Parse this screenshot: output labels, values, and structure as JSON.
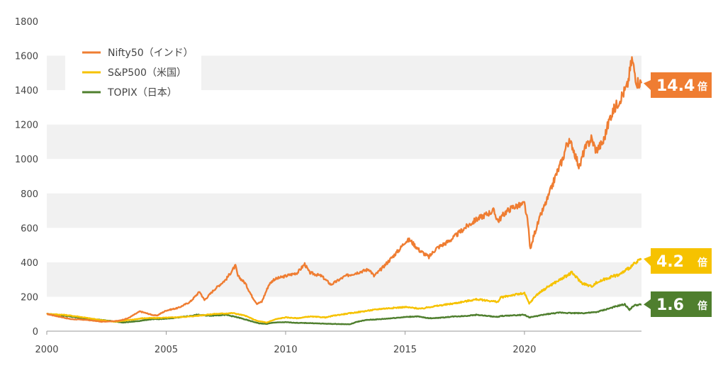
{
  "chart_data": {
    "type": "line",
    "title": "",
    "xlabel": "",
    "ylabel": "",
    "xlim": [
      2000,
      2024.9
    ],
    "ylim": [
      0,
      1800
    ],
    "x_ticks": [
      2000,
      2005,
      2010,
      2015,
      2020
    ],
    "x_tick_labels": [
      "2000",
      "2005",
      "2010",
      "2015",
      "2020"
    ],
    "y_ticks": [
      0,
      200,
      400,
      600,
      800,
      1000,
      1200,
      1400,
      1600,
      1800
    ],
    "y_tick_labels": [
      "0",
      "200",
      "400",
      "600",
      "800",
      "1000",
      "1200",
      "1400",
      "1600",
      "1800"
    ],
    "grid": "horizontal-bands",
    "legend_position": "top-left",
    "series": [
      {
        "name": "Nifty50（インド）",
        "color": "#ef7d32",
        "x": [
          2000,
          2000.5,
          2001,
          2001.7,
          2002.3,
          2003,
          2003.4,
          2003.9,
          2004.4,
          2004.6,
          2005,
          2005.5,
          2006,
          2006.4,
          2006.6,
          2007,
          2007.5,
          2007.9,
          2008,
          2008.3,
          2008.6,
          2008.8,
          2009,
          2009.3,
          2009.5,
          2010,
          2010.5,
          2010.8,
          2011,
          2011.5,
          2011.9,
          2012.5,
          2013,
          2013.5,
          2013.7,
          2014,
          2014.4,
          2014.8,
          2015,
          2015.2,
          2015.6,
          2016,
          2016.3,
          2016.8,
          2017,
          2017.5,
          2018,
          2018.7,
          2018.9,
          2019.2,
          2019.5,
          2019.8,
          2020,
          2020.15,
          2020.25,
          2020.4,
          2020.7,
          2021,
          2021.3,
          2021.6,
          2021.8,
          2022,
          2022.3,
          2022.5,
          2022.8,
          2023,
          2023.3,
          2023.6,
          2023.8,
          2024,
          2024.3,
          2024.5,
          2024.7,
          2024.9
        ],
        "values": [
          100,
          85,
          70,
          65,
          55,
          60,
          75,
          115,
          95,
          90,
          120,
          135,
          170,
          230,
          180,
          240,
          300,
          380,
          320,
          280,
          200,
          160,
          170,
          270,
          300,
          320,
          340,
          390,
          340,
          320,
          270,
          320,
          340,
          360,
          320,
          360,
          420,
          480,
          520,
          530,
          470,
          430,
          480,
          520,
          540,
          600,
          650,
          700,
          640,
          690,
          720,
          730,
          740,
          620,
          470,
          560,
          680,
          780,
          900,
          1000,
          1100,
          1080,
          950,
          1050,
          1120,
          1050,
          1100,
          1250,
          1300,
          1350,
          1420,
          1580,
          1450,
          1440
        ]
      },
      {
        "name": "S&P500（米国）",
        "color": "#f6c200",
        "x": [
          2000,
          2000.7,
          2001.3,
          2002,
          2002.5,
          2002.8,
          2003.5,
          2004,
          2005,
          2006,
          2007,
          2007.8,
          2008.3,
          2008.8,
          2009.2,
          2009.6,
          2010,
          2010.5,
          2011,
          2011.7,
          2012,
          2013,
          2014,
          2015,
          2015.7,
          2016,
          2017,
          2018,
          2018.9,
          2019,
          2019.5,
          2020,
          2020.2,
          2020.5,
          2021,
          2021.5,
          2021.99,
          2022.4,
          2022.8,
          2023,
          2023.5,
          2024,
          2024.5,
          2024.9
        ],
        "values": [
          100,
          95,
          85,
          70,
          60,
          55,
          65,
          75,
          78,
          85,
          100,
          105,
          90,
          60,
          50,
          70,
          80,
          75,
          85,
          80,
          90,
          110,
          130,
          140,
          130,
          140,
          160,
          185,
          170,
          195,
          210,
          220,
          160,
          210,
          260,
          300,
          340,
          280,
          260,
          280,
          310,
          330,
          380,
          420
        ]
      },
      {
        "name": "TOPIX（日本）",
        "color": "#4f7f2e",
        "x": [
          2000,
          2000.7,
          2001.5,
          2002,
          2002.5,
          2003.2,
          2003.8,
          2004.3,
          2005,
          2005.5,
          2006,
          2006.3,
          2006.8,
          2007.5,
          2008,
          2008.5,
          2008.9,
          2009.2,
          2009.5,
          2010,
          2010.5,
          2011,
          2011.5,
          2012,
          2012.7,
          2013,
          2013.4,
          2014,
          2015,
          2015.5,
          2016,
          2016.5,
          2017,
          2017.5,
          2018,
          2018.9,
          2019,
          2020,
          2020.2,
          2020.6,
          2021,
          2021.5,
          2022,
          2022.5,
          2023,
          2023.5,
          2024,
          2024.2,
          2024.4,
          2024.6,
          2024.9
        ],
        "values": [
          100,
          90,
          75,
          70,
          62,
          50,
          58,
          68,
          72,
          80,
          88,
          95,
          90,
          95,
          80,
          60,
          45,
          42,
          50,
          52,
          48,
          47,
          44,
          42,
          40,
          55,
          65,
          70,
          82,
          86,
          75,
          78,
          85,
          88,
          95,
          82,
          88,
          95,
          80,
          90,
          100,
          108,
          105,
          105,
          110,
          130,
          150,
          155,
          125,
          150,
          155
        ]
      }
    ],
    "callouts": [
      {
        "value": "14.4",
        "unit": "倍",
        "color": "#ef7d32",
        "series": 0
      },
      {
        "value": "4.2",
        "unit": "倍",
        "color": "#f6c200",
        "series": 1
      },
      {
        "value": "1.6",
        "unit": "倍",
        "color": "#4f7f2e",
        "series": 2
      }
    ]
  }
}
